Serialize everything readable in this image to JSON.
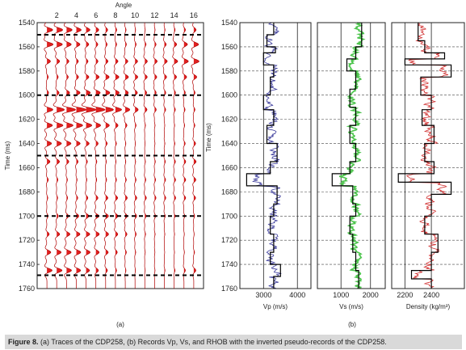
{
  "caption": {
    "label": "Figure 8.",
    "text": "(a) Traces of the CDP258, (b) Records Vp, Vs, and RHOB with the inverted pseudo-records of the CDP258."
  },
  "chart_data": [
    {
      "type": "wiggle",
      "panel_label": "(a)",
      "title": "Angle",
      "xlabel": "Angle",
      "ylabel": "Time (ms)",
      "x_ticks": [
        2,
        4,
        6,
        8,
        10,
        12,
        14,
        16
      ],
      "y_ticks": [
        1540,
        1560,
        1580,
        1600,
        1620,
        1640,
        1660,
        1680,
        1700,
        1720,
        1740,
        1760
      ],
      "ylim": [
        1540,
        1760
      ],
      "xlim": [
        0,
        17
      ],
      "trace_angles": [
        1,
        2,
        3,
        4,
        5,
        6,
        7,
        8,
        9,
        10,
        11,
        12,
        13,
        14,
        15,
        16
      ],
      "horizon_times": [
        1550,
        1600,
        1650,
        1700,
        1749
      ],
      "events": [
        {
          "t": 1546,
          "amp": 0.5
        },
        {
          "t": 1558,
          "amp": 0.7
        },
        {
          "t": 1572,
          "amp": 0.75
        },
        {
          "t": 1585,
          "amp": 0.55
        },
        {
          "t": 1598,
          "amp": 0.45
        },
        {
          "t": 1612,
          "amp": 0.8
        },
        {
          "t": 1625,
          "amp": 0.5
        },
        {
          "t": 1640,
          "amp": 0.4
        },
        {
          "t": 1655,
          "amp": 0.35
        },
        {
          "t": 1670,
          "amp": 0.3
        },
        {
          "t": 1685,
          "amp": 0.35
        },
        {
          "t": 1700,
          "amp": 0.3
        },
        {
          "t": 1715,
          "amp": 0.3
        },
        {
          "t": 1730,
          "amp": 0.35
        },
        {
          "t": 1745,
          "amp": 0.45
        }
      ],
      "colors": {
        "fill": "#e02020",
        "line": "#b00000"
      }
    },
    {
      "type": "line",
      "panel_label": "(b)",
      "xlabel": "Vp (m/s)",
      "ylabel": "Time (ms)",
      "xlim": [
        2300,
        4400
      ],
      "x_ticks": [
        3000,
        4000
      ],
      "ylim": [
        1540,
        1760
      ],
      "series": [
        {
          "role": "record",
          "color": "#3a3a9a",
          "base": 3300,
          "noise": 250
        },
        {
          "role": "inverted",
          "color": "#000000",
          "steps": [
            [
              1540,
              3300
            ],
            [
              1550,
              3100
            ],
            [
              1560,
              3350
            ],
            [
              1565,
              3000
            ],
            [
              1575,
              3300
            ],
            [
              1585,
              3200
            ],
            [
              1600,
              3000
            ],
            [
              1612,
              3300
            ],
            [
              1625,
              3100
            ],
            [
              1640,
              3400
            ],
            [
              1655,
              3200
            ],
            [
              1665,
              2500
            ],
            [
              1675,
              3400
            ],
            [
              1690,
              3300
            ],
            [
              1700,
              3200
            ],
            [
              1715,
              3300
            ],
            [
              1730,
              3200
            ],
            [
              1740,
              3500
            ],
            [
              1750,
              3300
            ],
            [
              1760,
              3300
            ]
          ]
        }
      ]
    },
    {
      "type": "line",
      "xlabel": "Vs (m/s)",
      "xlim": [
        200,
        2500
      ],
      "x_ticks": [
        1000,
        2000
      ],
      "ylim": [
        1540,
        1760
      ],
      "series": [
        {
          "role": "record",
          "color": "#4cc44c",
          "base": 1500,
          "noise": 250
        },
        {
          "role": "inverted",
          "color": "#000000",
          "steps": [
            [
              1540,
              1700
            ],
            [
              1560,
              1500
            ],
            [
              1570,
              1200
            ],
            [
              1580,
              1500
            ],
            [
              1595,
              1300
            ],
            [
              1610,
              1500
            ],
            [
              1625,
              1300
            ],
            [
              1640,
              1500
            ],
            [
              1655,
              1300
            ],
            [
              1665,
              700
            ],
            [
              1675,
              1400
            ],
            [
              1690,
              1500
            ],
            [
              1700,
              1300
            ],
            [
              1715,
              1400
            ],
            [
              1730,
              1500
            ],
            [
              1745,
              1600
            ],
            [
              1760,
              1600
            ]
          ]
        }
      ]
    },
    {
      "type": "line",
      "xlabel": "Density (kg/m³)",
      "xlim": [
        2100,
        2650
      ],
      "x_ticks": [
        2200,
        2400
      ],
      "ylim": [
        1540,
        1760
      ],
      "series": [
        {
          "role": "record",
          "color": "#d03030",
          "base": 2380,
          "noise": 70
        },
        {
          "role": "inverted",
          "color": "#000000",
          "steps": [
            [
              1540,
              2300
            ],
            [
              1555,
              2350
            ],
            [
              1565,
              2500
            ],
            [
              1570,
              2200
            ],
            [
              1575,
              2550
            ],
            [
              1585,
              2320
            ],
            [
              1600,
              2400
            ],
            [
              1612,
              2330
            ],
            [
              1625,
              2420
            ],
            [
              1640,
              2350
            ],
            [
              1655,
              2420
            ],
            [
              1665,
              2150
            ],
            [
              1672,
              2550
            ],
            [
              1682,
              2400
            ],
            [
              1700,
              2350
            ],
            [
              1715,
              2450
            ],
            [
              1730,
              2400
            ],
            [
              1745,
              2250
            ],
            [
              1752,
              2400
            ],
            [
              1760,
              2400
            ]
          ]
        }
      ]
    }
  ],
  "panel_b_label": "(b)",
  "y_tick_labels_b": [
    "1540",
    "1560",
    "1580",
    "1600",
    "1620",
    "1640",
    "1660",
    "1680",
    "1700",
    "1720",
    "1740",
    "1760"
  ],
  "time_label": "Time (ms)"
}
